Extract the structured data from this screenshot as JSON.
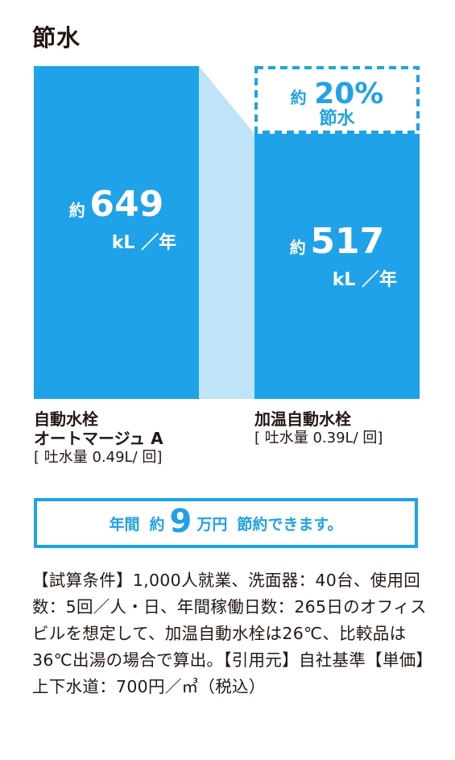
{
  "title": "節水",
  "chart_data": {
    "type": "bar",
    "categories": [
      "自動水栓 オートマージュ A",
      "加温自動水栓"
    ],
    "values": [
      649,
      517
    ],
    "value_prefix": "約",
    "unit": "kL ／年",
    "value_labels": [
      {
        "prefix": "約",
        "value": "649",
        "unit": "kL ／年"
      },
      {
        "prefix": "約",
        "value": "517",
        "unit": "kL ／年"
      }
    ],
    "savings": {
      "prefix": "約",
      "value": "20%",
      "label": "節水"
    },
    "colors": {
      "bar": "#1fa2e8",
      "connector": "#bfe3f7",
      "dashed": "#1fa2e8"
    }
  },
  "bar_labels": [
    {
      "line1": "自動水栓",
      "line2": "オートマージュ A",
      "sub": "[ 吐水量 0.49L/ 回]"
    },
    {
      "line1": "加温自動水栓",
      "line2": "",
      "sub": "[ 吐水量 0.39L/ 回]"
    }
  ],
  "banner": {
    "pre1": "年間",
    "pre2": "約",
    "big": "9",
    "post": "万円",
    "tail": "節約できます。"
  },
  "note": "【試算条件】1,000人就業、洗面器：40台、使用回数：5回／人・日、年間稼働日数：265日のオフィスビルを想定して、加温自動水栓は26℃、比較品は36℃出湯の場合で算出。【引用元】自社基準【単価】上下水道：700円／㎥（税込）"
}
